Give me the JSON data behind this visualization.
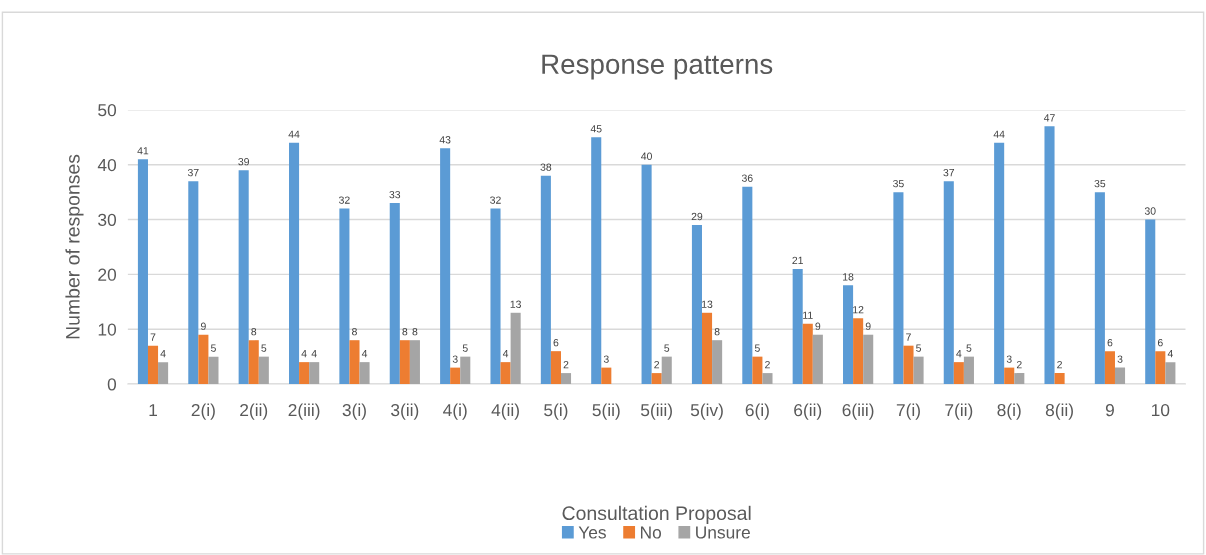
{
  "chart_data": {
    "type": "bar",
    "title": "Response patterns",
    "xlabel": "Consultation Proposal",
    "ylabel": "Number of responses",
    "categories": [
      "1",
      "2(i)",
      "2(ii)",
      "2(iii)",
      "3(i)",
      "3(ii)",
      "4(i)",
      "4(ii)",
      "5(i)",
      "5(ii)",
      "5(iii)",
      "5(iv)",
      "6(i)",
      "6(ii)",
      "6(iii)",
      "7(i)",
      "7(ii)",
      "8(i)",
      "8(ii)",
      "9",
      "10"
    ],
    "series": [
      {
        "name": "Yes",
        "color": "#5b9bd5",
        "values": [
          41,
          37,
          39,
          44,
          32,
          33,
          43,
          32,
          38,
          45,
          40,
          29,
          36,
          21,
          18,
          35,
          37,
          44,
          47,
          35,
          30
        ]
      },
      {
        "name": "No",
        "color": "#ed7d31",
        "values": [
          7,
          9,
          8,
          4,
          8,
          8,
          3,
          4,
          6,
          3,
          2,
          13,
          5,
          11,
          12,
          7,
          4,
          3,
          2,
          6,
          6
        ]
      },
      {
        "name": "Unsure",
        "color": "#a5a5a5",
        "values": [
          4,
          5,
          5,
          4,
          4,
          8,
          5,
          13,
          2,
          null,
          5,
          8,
          2,
          9,
          9,
          5,
          5,
          2,
          null,
          3,
          4
        ]
      }
    ],
    "ylim": [
      0,
      50
    ],
    "yticks": [
      0,
      10,
      20,
      30,
      40,
      50
    ],
    "grid": "y",
    "legend": "bottom",
    "data_labels": true
  }
}
